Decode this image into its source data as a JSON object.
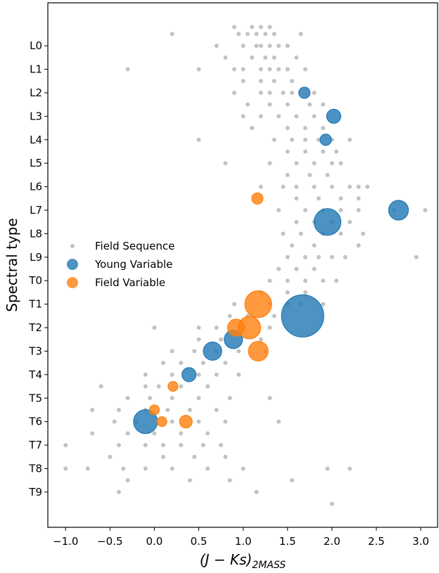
{
  "chart_data": {
    "type": "scatter",
    "ylabel": "Spectral type",
    "xlabel": "(J − Ks)",
    "xlabel_sub": "2MASS",
    "xlim": [
      -1.2,
      3.19
    ],
    "ylim": [
      20.5,
      -1.83
    ],
    "xticks": [
      {
        "value": -1.0,
        "label": "−1.0"
      },
      {
        "value": -0.5,
        "label": "−0.5"
      },
      {
        "value": 0.0,
        "label": "0.0"
      },
      {
        "value": 0.5,
        "label": "0.5"
      },
      {
        "value": 1.0,
        "label": "1.0"
      },
      {
        "value": 1.5,
        "label": "1.5"
      },
      {
        "value": 2.0,
        "label": "2.0"
      },
      {
        "value": 2.5,
        "label": "2.5"
      },
      {
        "value": 3.0,
        "label": "3.0"
      }
    ],
    "yticks": [
      {
        "value": 0,
        "label": "L0"
      },
      {
        "value": 1,
        "label": "L1"
      },
      {
        "value": 2,
        "label": "L2"
      },
      {
        "value": 3,
        "label": "L3"
      },
      {
        "value": 4,
        "label": "L4"
      },
      {
        "value": 5,
        "label": "L5"
      },
      {
        "value": 6,
        "label": "L6"
      },
      {
        "value": 7,
        "label": "L7"
      },
      {
        "value": 8,
        "label": "L8"
      },
      {
        "value": 9,
        "label": "L9"
      },
      {
        "value": 10,
        "label": "T0"
      },
      {
        "value": 11,
        "label": "T1"
      },
      {
        "value": 12,
        "label": "T2"
      },
      {
        "value": 13,
        "label": "T3"
      },
      {
        "value": 14,
        "label": "T4"
      },
      {
        "value": 15,
        "label": "T5"
      },
      {
        "value": 16,
        "label": "T6"
      },
      {
        "value": 17,
        "label": "T7"
      },
      {
        "value": 18,
        "label": "T8"
      },
      {
        "value": 19,
        "label": "T9"
      }
    ],
    "legend": "center left",
    "series": [
      {
        "name": "Field Sequence",
        "color": "#999999",
        "x": [
          0.9,
          1.1,
          1.2,
          1.3,
          0.2,
          0.95,
          1.05,
          1.15,
          1.25,
          1.35,
          1.65,
          0.7,
          1.0,
          1.15,
          1.2,
          1.3,
          1.4,
          1.5,
          0.8,
          1.1,
          1.25,
          1.35,
          1.6,
          -0.3,
          0.5,
          0.9,
          1.0,
          1.2,
          1.3,
          1.4,
          1.5,
          1.7,
          1.0,
          1.2,
          1.35,
          1.55,
          0.9,
          1.2,
          1.3,
          1.45,
          1.55,
          1.8,
          1.05,
          1.3,
          1.5,
          1.75,
          1.9,
          1.0,
          1.2,
          1.4,
          1.6,
          1.8,
          1.1,
          1.5,
          1.7,
          1.9,
          0.5,
          1.35,
          1.55,
          1.7,
          1.85,
          2.0,
          2.2,
          1.5,
          1.7,
          1.9,
          2.05,
          0.8,
          1.3,
          1.6,
          1.8,
          2.0,
          2.1,
          1.5,
          1.75,
          1.95,
          1.2,
          1.45,
          1.6,
          1.8,
          2.0,
          2.2,
          2.3,
          2.4,
          1.6,
          1.85,
          2.1,
          2.3,
          1.4,
          1.7,
          1.9,
          2.1,
          2.3,
          2.7,
          3.05,
          1.6,
          1.8,
          2.0,
          2.2,
          1.45,
          1.65,
          1.9,
          2.1,
          2.35,
          1.55,
          1.8,
          2.3,
          1.5,
          1.7,
          1.85,
          2.0,
          2.15,
          2.95,
          1.4,
          1.6,
          1.8,
          1.3,
          1.5,
          1.7,
          1.9,
          2.05,
          1.2,
          1.5,
          1.7,
          0.9,
          1.3,
          1.5,
          1.65,
          1.9,
          0.85,
          1.05,
          1.35,
          0.0,
          0.5,
          0.7,
          0.95,
          1.3,
          0.5,
          0.75,
          1.2,
          0.2,
          0.45,
          0.7,
          0.95,
          1.25,
          0.1,
          0.3,
          0.55,
          0.8,
          -0.1,
          0.2,
          0.5,
          0.7,
          0.95,
          -0.6,
          -0.1,
          0.05,
          0.3,
          0.6,
          -0.3,
          -0.05,
          0.2,
          0.5,
          0.85,
          1.3,
          -0.7,
          -0.4,
          -0.1,
          0.15,
          0.4,
          0.7,
          -0.45,
          -0.2,
          0.2,
          0.5,
          0.8,
          1.4,
          -0.7,
          -0.3,
          0.0,
          0.3,
          0.6,
          -1.0,
          -0.4,
          -0.1,
          0.1,
          0.3,
          0.55,
          0.75,
          -0.5,
          0.1,
          0.45,
          0.8,
          -1.0,
          -0.75,
          -0.35,
          -0.1,
          0.2,
          0.6,
          1.0,
          1.95,
          2.2,
          -0.3,
          0.4,
          0.85,
          1.55,
          -0.4,
          1.15,
          2.0
        ],
        "values": [
          -0.8,
          -0.8,
          -0.8,
          -0.8,
          -0.5,
          -0.5,
          -0.5,
          -0.5,
          -0.5,
          -0.5,
          -0.5,
          0,
          0,
          0,
          0,
          0,
          0,
          0,
          0.5,
          0.5,
          0.5,
          0.5,
          0.5,
          1,
          1,
          1,
          1,
          1,
          1,
          1,
          1,
          1,
          1.5,
          1.5,
          1.5,
          1.5,
          2,
          2,
          2,
          2,
          2,
          2,
          2.5,
          2.5,
          2.5,
          2.5,
          2.5,
          3,
          3,
          3,
          3,
          3,
          3.5,
          3.5,
          3.5,
          3.5,
          4,
          4,
          4,
          4,
          4,
          4,
          4,
          4.5,
          4.5,
          4.5,
          4.5,
          5,
          5,
          5,
          5,
          5,
          5,
          5.5,
          5.5,
          5.5,
          6,
          6,
          6,
          6,
          6,
          6,
          6,
          6,
          6.5,
          6.5,
          6.5,
          6.5,
          7,
          7,
          7,
          7,
          7,
          7,
          7,
          7.5,
          7.5,
          7.5,
          7.5,
          8,
          8,
          8,
          8,
          8,
          8.5,
          8.5,
          8.5,
          9,
          9,
          9,
          9,
          9,
          9,
          9.5,
          9.5,
          9.5,
          10,
          10,
          10,
          10,
          10,
          10.5,
          10.5,
          10.5,
          11,
          11,
          11,
          11,
          11,
          11.5,
          11.5,
          11.5,
          12,
          12,
          12,
          12,
          12,
          12.5,
          12.5,
          12.5,
          13,
          13,
          13,
          13,
          13,
          13.5,
          13.5,
          13.5,
          13.5,
          14,
          14,
          14,
          14,
          14,
          14.5,
          14.5,
          14.5,
          14.5,
          14.5,
          15,
          15,
          15,
          15,
          15,
          15,
          15.5,
          15.5,
          15.5,
          15.5,
          15.5,
          15.5,
          16,
          16,
          16,
          16,
          16,
          16,
          16.5,
          16.5,
          16.5,
          16.5,
          16.5,
          17,
          17,
          17,
          17,
          17,
          17,
          17,
          17.5,
          17.5,
          17.5,
          17.5,
          18,
          18,
          18,
          18,
          18,
          18,
          18,
          18,
          18,
          18.5,
          18.5,
          18.5,
          18.5,
          19,
          19,
          19.5
        ]
      },
      {
        "name": "Young Variable",
        "color": "#1f77b4",
        "x": [
          1.69,
          2.02,
          1.93,
          2.75,
          1.95,
          1.67,
          0.89,
          0.655,
          0.39,
          -0.1
        ],
        "values": [
          2,
          3,
          4,
          7,
          7.5,
          11.5,
          12.5,
          13,
          14,
          16
        ],
        "sizes": [
          256,
          400,
          256,
          784,
          1444,
          3600,
          676,
          676,
          400,
          1156
        ]
      },
      {
        "name": "Field Variable",
        "color": "#ff7f0e",
        "x": [
          1.16,
          1.17,
          1.07,
          0.92,
          1.17,
          0.21,
          0.0,
          0.085,
          0.355
        ],
        "values": [
          6.5,
          11,
          12,
          12,
          13,
          14.5,
          15.5,
          16,
          16
        ],
        "sizes": [
          256,
          1444,
          1024,
          576,
          784,
          196,
          196,
          196,
          324
        ]
      }
    ]
  }
}
